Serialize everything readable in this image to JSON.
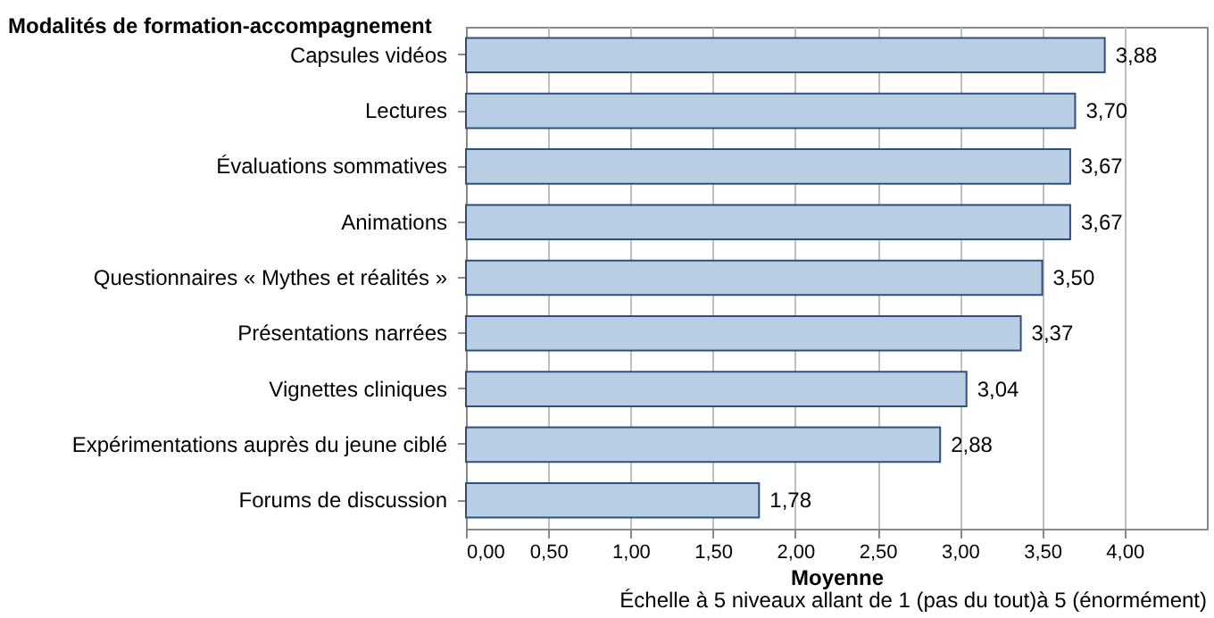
{
  "chart_data": {
    "type": "bar",
    "orientation": "horizontal",
    "ylabel": "Modalités de formation-accompagnement",
    "xlabel": "Moyenne",
    "annotations": [
      "Échelle à 5 niveaux allant de 1 (pas du tout)à 5 (énormément)"
    ],
    "categories": [
      "Capsules vidéos",
      "Lectures",
      "Évaluations sommatives",
      "Animations",
      "Questionnaires « Mythes et réalités »",
      "Présentations narrées",
      "Vignettes cliniques",
      "Expérimentations auprès du jeune ciblé",
      "Forums de discussion"
    ],
    "values": [
      3.88,
      3.7,
      3.67,
      3.67,
      3.5,
      3.37,
      3.04,
      2.88,
      1.78
    ],
    "value_labels": [
      "3,88",
      "3,70",
      "3,67",
      "3,67",
      "3,50",
      "3,37",
      "3,04",
      "2,88",
      "1,78"
    ],
    "color": "#b9cde5",
    "xlim": [
      0,
      4.5
    ],
    "xticks": [
      {
        "value": 0,
        "label": "0,00"
      },
      {
        "value": 0.5,
        "label": "0,50"
      },
      {
        "value": 1,
        "label": "1,00"
      },
      {
        "value": 1.5,
        "label": "1,50"
      },
      {
        "value": 2,
        "label": "2,00"
      },
      {
        "value": 2.5,
        "label": "2,50"
      },
      {
        "value": 3,
        "label": "3,00"
      },
      {
        "value": 3.5,
        "label": "3,50"
      },
      {
        "value": 4,
        "label": "4,00"
      }
    ],
    "grid": "x"
  }
}
